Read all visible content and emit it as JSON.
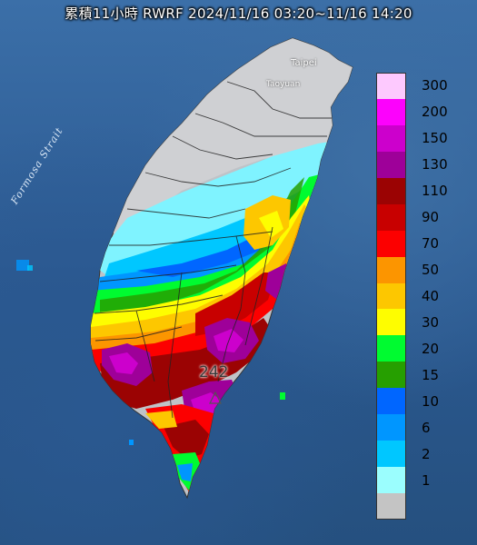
{
  "map": {
    "title": "累積11小時 RWRF 2024/11/16 03:20~11/16 14:20",
    "labels": {
      "strait": "Formosa Strait",
      "taipei": "Taipei",
      "taoyuan": "Taoyuan",
      "peak_value": "242"
    }
  },
  "legend": {
    "unit": "",
    "bins": [
      {
        "label": "300",
        "color": "#fdc9fe"
      },
      {
        "label": "200",
        "color": "#fc02fc"
      },
      {
        "label": "150",
        "color": "#cc00cc"
      },
      {
        "label": "130",
        "color": "#9e0099"
      },
      {
        "label": "110",
        "color": "#9b0303"
      },
      {
        "label": "90",
        "color": "#c80000"
      },
      {
        "label": "70",
        "color": "#fc0000"
      },
      {
        "label": "50",
        "color": "#fc9500"
      },
      {
        "label": "40",
        "color": "#fdc700"
      },
      {
        "label": "30",
        "color": "#fefd00"
      },
      {
        "label": "20",
        "color": "#00fb30"
      },
      {
        "label": "15",
        "color": "#269f00"
      },
      {
        "label": "10",
        "color": "#0066ff"
      },
      {
        "label": "6",
        "color": "#0096ff"
      },
      {
        "label": "2",
        "color": "#00c7ff"
      },
      {
        "label": "1",
        "color": "#9bfefe"
      },
      {
        "label": "",
        "color": "#c4c4c4"
      }
    ]
  }
}
